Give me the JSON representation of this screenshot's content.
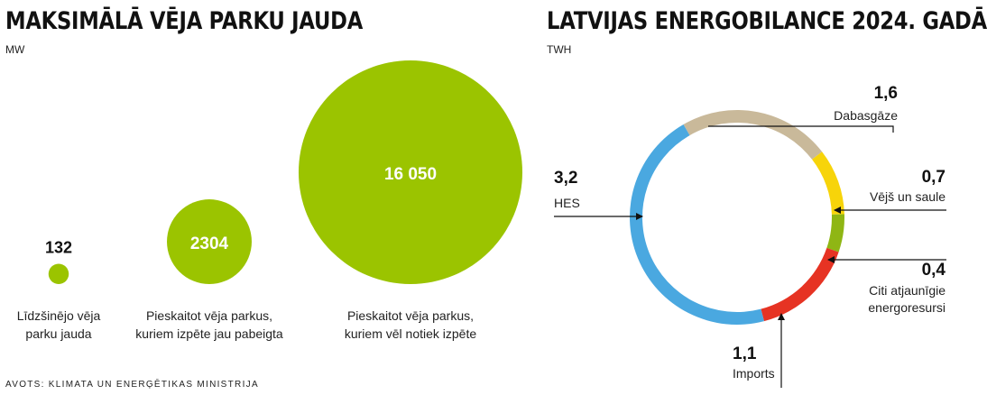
{
  "left_chart": {
    "title": "MAKSIMĀLĀ VĒJA PARKU JAUDA",
    "unit": "MW"
  },
  "right_chart": {
    "title": "LATVIJAS ENERGOBILANCE 2024. GADĀ",
    "unit": "TWH"
  },
  "source": "AVOTS: KLIMATA UN ENERĢĒTIKAS MINISTRIJA",
  "chart_data": [
    {
      "type": "bubble",
      "title": "MAKSIMĀLĀ VĒJA PARKU JAUDA",
      "unit": "MW",
      "color": "#9bc400",
      "items": [
        {
          "value": 132,
          "value_label": "132",
          "label": [
            "Līdzšinējo vēja",
            "parku jauda"
          ]
        },
        {
          "value": 2304,
          "value_label": "2304",
          "label": [
            "Pieskaitot vēja parkus,",
            "kuriem izpēte jau pabeigta"
          ]
        },
        {
          "value": 16050,
          "value_label": "16 050",
          "label": [
            "Pieskaitot vēja parkus,",
            "kuriem vēl notiek izpēte"
          ]
        }
      ]
    },
    {
      "type": "donut",
      "title": "LATVIJAS ENERGOBILANCE 2024. GADĀ",
      "unit": "TWH",
      "segments": [
        {
          "name": "Dabasgāze",
          "value": 1.6,
          "value_label": "1,6",
          "label": [
            "Dabasgāze"
          ],
          "color": "#c9b99a"
        },
        {
          "name": "Vējš un saule",
          "value": 0.7,
          "value_label": "0,7",
          "label": [
            "Vējš un saule"
          ],
          "color": "#f7d40a"
        },
        {
          "name": "Citi atjaunīgie energoresursi",
          "value": 0.4,
          "value_label": "0,4",
          "label": [
            "Citi atjaunīgie",
            "energoresursi"
          ],
          "color": "#8fb614"
        },
        {
          "name": "Imports",
          "value": 1.1,
          "value_label": "1,1",
          "label": [
            "Imports"
          ],
          "color": "#e63323"
        },
        {
          "name": "HES",
          "value": 3.2,
          "value_label": "3,2",
          "label": [
            "HES"
          ],
          "color": "#4aa8e0"
        }
      ]
    }
  ]
}
